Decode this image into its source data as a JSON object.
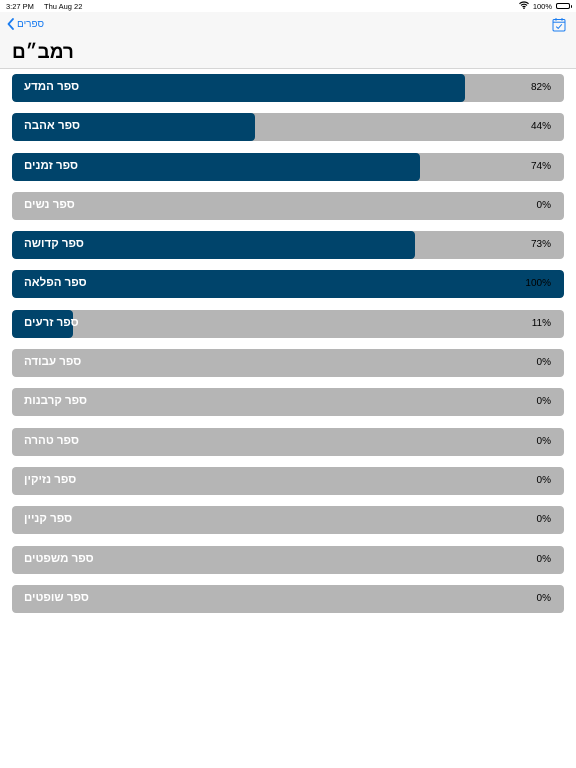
{
  "status_bar": {
    "time": "3:27 PM",
    "date": "Thu Aug 22",
    "battery": "100%"
  },
  "nav": {
    "back_label": "ספרים",
    "title": "רמב״ם"
  },
  "colors": {
    "progress_fill": "#00446b",
    "track": "#b5b5b5",
    "accent": "#1a7cf0"
  },
  "books": [
    {
      "name": "ספר המדע",
      "progress": 82,
      "percent_label": "82%"
    },
    {
      "name": "ספר אהבה",
      "progress": 44,
      "percent_label": "44%"
    },
    {
      "name": "ספר זמנים",
      "progress": 74,
      "percent_label": "74%"
    },
    {
      "name": "ספר נשים",
      "progress": 0,
      "percent_label": "0%"
    },
    {
      "name": "ספר קדושה",
      "progress": 73,
      "percent_label": "73%"
    },
    {
      "name": "ספר הפלאה",
      "progress": 100,
      "percent_label": "100%"
    },
    {
      "name": "ספר זרעים",
      "progress": 11,
      "percent_label": "11%"
    },
    {
      "name": "ספר עבודה",
      "progress": 0,
      "percent_label": "0%"
    },
    {
      "name": "ספר קרבנות",
      "progress": 0,
      "percent_label": "0%"
    },
    {
      "name": "ספר טהרה",
      "progress": 0,
      "percent_label": "0%"
    },
    {
      "name": "ספר נזיקין",
      "progress": 0,
      "percent_label": "0%"
    },
    {
      "name": "ספר קניין",
      "progress": 0,
      "percent_label": "0%"
    },
    {
      "name": "ספר משפטים",
      "progress": 0,
      "percent_label": "0%"
    },
    {
      "name": "ספר שופטים",
      "progress": 0,
      "percent_label": "0%"
    }
  ]
}
